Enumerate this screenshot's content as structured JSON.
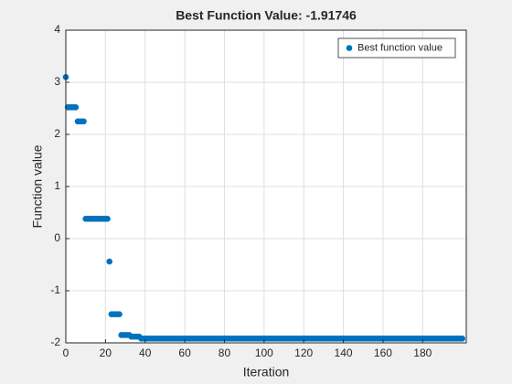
{
  "chart_data": {
    "type": "scatter",
    "title": "Best Function Value: -1.91746",
    "x_label": "Iteration",
    "y_label": "Function value",
    "xlim": [
      0,
      202
    ],
    "ylim": [
      -2,
      4
    ],
    "xticks": [
      0,
      20,
      40,
      60,
      80,
      100,
      120,
      140,
      160,
      180
    ],
    "yticks": [
      -2,
      -1,
      0,
      1,
      2,
      3,
      4
    ],
    "grid": true,
    "legend_position": "northeast",
    "series": [
      {
        "name": "Best function value",
        "color": "#0072bd",
        "x": [
          0,
          1,
          2,
          3,
          4,
          5,
          6,
          7,
          8,
          9,
          10,
          11,
          12,
          13,
          14,
          15,
          16,
          17,
          18,
          19,
          20,
          21,
          22,
          23,
          24,
          25,
          26,
          27,
          28,
          29,
          30,
          31,
          32,
          33,
          34,
          35,
          36,
          37,
          38,
          39,
          40,
          41,
          42,
          43,
          44,
          45,
          46,
          47,
          48,
          49,
          50,
          51,
          52,
          53,
          54,
          55,
          56,
          57,
          58,
          59,
          60,
          61,
          62,
          63,
          64,
          65,
          66,
          67,
          68,
          69,
          70,
          71,
          72,
          73,
          74,
          75,
          76,
          77,
          78,
          79,
          80,
          81,
          82,
          83,
          84,
          85,
          86,
          87,
          88,
          89,
          90,
          91,
          92,
          93,
          94,
          95,
          96,
          97,
          98,
          99,
          100,
          101,
          102,
          103,
          104,
          105,
          106,
          107,
          108,
          109,
          110,
          111,
          112,
          113,
          114,
          115,
          116,
          117,
          118,
          119,
          120,
          121,
          122,
          123,
          124,
          125,
          126,
          127,
          128,
          129,
          130,
          131,
          132,
          133,
          134,
          135,
          136,
          137,
          138,
          139,
          140,
          141,
          142,
          143,
          144,
          145,
          146,
          147,
          148,
          149,
          150,
          151,
          152,
          153,
          154,
          155,
          156,
          157,
          158,
          159,
          160,
          161,
          162,
          163,
          164,
          165,
          166,
          167,
          168,
          169,
          170,
          171,
          172,
          173,
          174,
          175,
          176,
          177,
          178,
          179,
          180,
          181,
          182,
          183,
          184,
          185,
          186,
          187,
          188,
          189,
          190,
          191,
          192,
          193,
          194,
          195,
          196,
          197,
          198,
          199,
          200
        ],
        "values": [
          3.1,
          2.52,
          2.52,
          2.52,
          2.52,
          2.52,
          2.25,
          2.25,
          2.25,
          2.25,
          0.38,
          0.38,
          0.38,
          0.38,
          0.38,
          0.38,
          0.38,
          0.38,
          0.38,
          0.38,
          0.38,
          0.38,
          -0.44,
          -1.45,
          -1.45,
          -1.45,
          -1.45,
          -1.45,
          -1.85,
          -1.85,
          -1.85,
          -1.85,
          -1.85,
          -1.88,
          -1.88,
          -1.88,
          -1.88,
          -1.88,
          -1.91746,
          -1.91746,
          -1.91746,
          -1.91746,
          -1.91746,
          -1.91746,
          -1.91746,
          -1.91746,
          -1.91746,
          -1.91746,
          -1.91746,
          -1.91746,
          -1.91746,
          -1.91746,
          -1.91746,
          -1.91746,
          -1.91746,
          -1.91746,
          -1.91746,
          -1.91746,
          -1.91746,
          -1.91746,
          -1.91746,
          -1.91746,
          -1.91746,
          -1.91746,
          -1.91746,
          -1.91746,
          -1.91746,
          -1.91746,
          -1.91746,
          -1.91746,
          -1.91746,
          -1.91746,
          -1.91746,
          -1.91746,
          -1.91746,
          -1.91746,
          -1.91746,
          -1.91746,
          -1.91746,
          -1.91746,
          -1.91746,
          -1.91746,
          -1.91746,
          -1.91746,
          -1.91746,
          -1.91746,
          -1.91746,
          -1.91746,
          -1.91746,
          -1.91746,
          -1.91746,
          -1.91746,
          -1.91746,
          -1.91746,
          -1.91746,
          -1.91746,
          -1.91746,
          -1.91746,
          -1.91746,
          -1.91746,
          -1.91746,
          -1.91746,
          -1.91746,
          -1.91746,
          -1.91746,
          -1.91746,
          -1.91746,
          -1.91746,
          -1.91746,
          -1.91746,
          -1.91746,
          -1.91746,
          -1.91746,
          -1.91746,
          -1.91746,
          -1.91746,
          -1.91746,
          -1.91746,
          -1.91746,
          -1.91746,
          -1.91746,
          -1.91746,
          -1.91746,
          -1.91746,
          -1.91746,
          -1.91746,
          -1.91746,
          -1.91746,
          -1.91746,
          -1.91746,
          -1.91746,
          -1.91746,
          -1.91746,
          -1.91746,
          -1.91746,
          -1.91746,
          -1.91746,
          -1.91746,
          -1.91746,
          -1.91746,
          -1.91746,
          -1.91746,
          -1.91746,
          -1.91746,
          -1.91746,
          -1.91746,
          -1.91746,
          -1.91746,
          -1.91746,
          -1.91746,
          -1.91746,
          -1.91746,
          -1.91746,
          -1.91746,
          -1.91746,
          -1.91746,
          -1.91746,
          -1.91746,
          -1.91746,
          -1.91746,
          -1.91746,
          -1.91746,
          -1.91746,
          -1.91746,
          -1.91746,
          -1.91746,
          -1.91746,
          -1.91746,
          -1.91746,
          -1.91746,
          -1.91746,
          -1.91746,
          -1.91746,
          -1.91746,
          -1.91746,
          -1.91746,
          -1.91746,
          -1.91746,
          -1.91746,
          -1.91746,
          -1.91746,
          -1.91746,
          -1.91746,
          -1.91746,
          -1.91746,
          -1.91746,
          -1.91746,
          -1.91746,
          -1.91746,
          -1.91746,
          -1.91746,
          -1.91746,
          -1.91746,
          -1.91746,
          -1.91746,
          -1.91746,
          -1.91746,
          -1.91746,
          -1.91746,
          -1.91746,
          -1.91746
        ]
      }
    ]
  }
}
